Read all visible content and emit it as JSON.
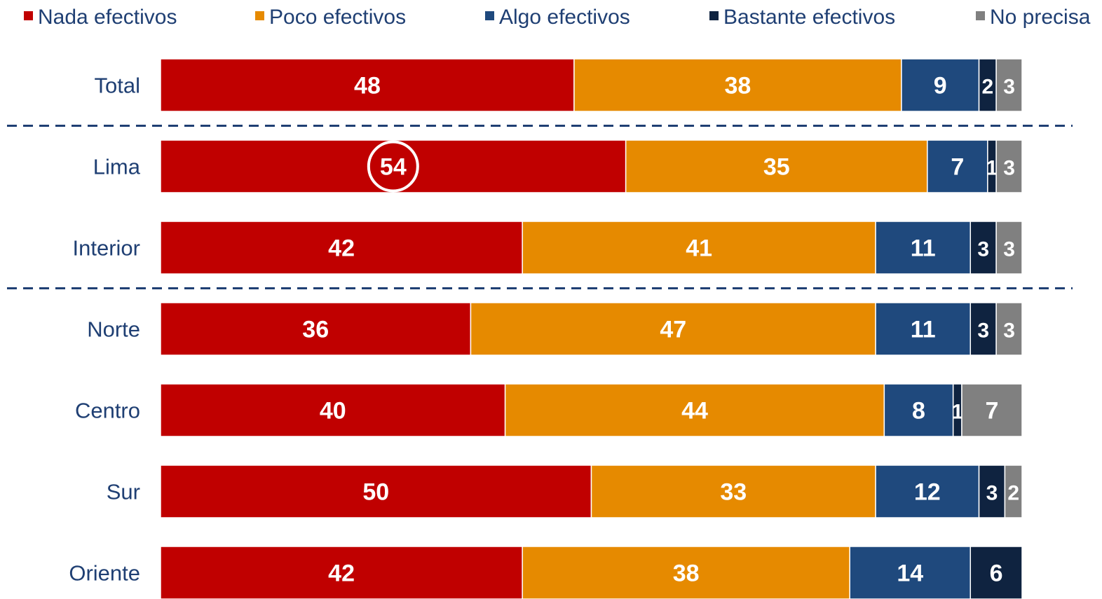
{
  "chart_data": {
    "type": "bar",
    "orientation": "horizontal",
    "stacked": true,
    "title": "",
    "xlabel": "",
    "ylabel": "",
    "xlim": [
      0,
      100
    ],
    "legend_position": "top",
    "grid": false,
    "categories": [
      "Total",
      "Lima",
      "Interior",
      "Norte",
      "Centro",
      "Sur",
      "Oriente"
    ],
    "series": [
      {
        "name": "Nada efectivos",
        "color": "#c00000",
        "values": [
          48,
          54,
          42,
          36,
          40,
          50,
          42
        ]
      },
      {
        "name": "Poco efectivos",
        "color": "#e68a00",
        "values": [
          38,
          35,
          41,
          47,
          44,
          33,
          38
        ]
      },
      {
        "name": "Algo efectivos",
        "color": "#1f497d",
        "values": [
          9,
          7,
          11,
          11,
          8,
          12,
          14
        ]
      },
      {
        "name": "Bastante efectivos",
        "color": "#0f2340",
        "values": [
          2,
          1,
          3,
          3,
          1,
          3,
          6
        ]
      },
      {
        "name": "No precisa",
        "color": "#808080",
        "values": [
          3,
          3,
          3,
          3,
          7,
          2,
          0
        ]
      }
    ],
    "highlight": {
      "category": "Lima",
      "series": "Nada efectivos"
    },
    "separators_after": [
      "Total",
      "Interior"
    ]
  }
}
